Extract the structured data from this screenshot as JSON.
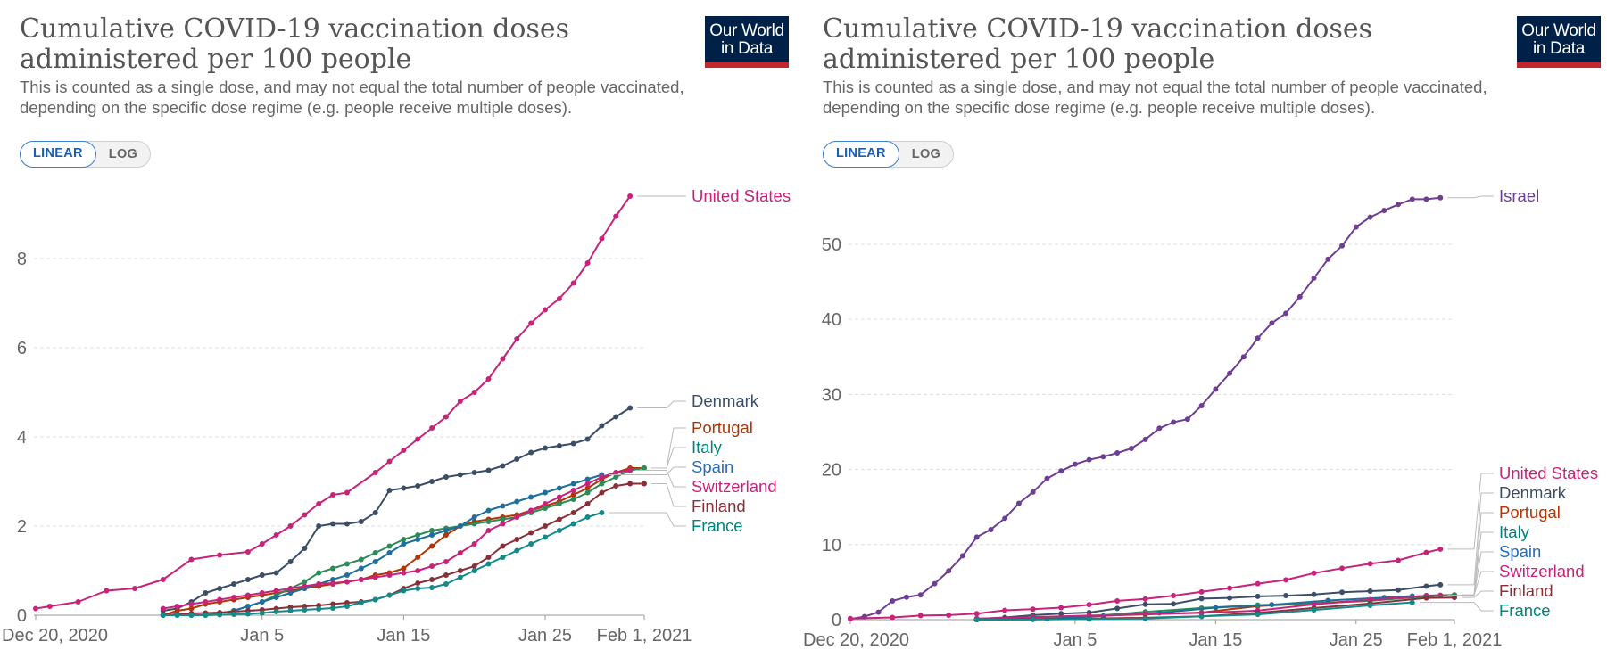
{
  "charts": [
    {
      "title": "Cumulative COVID-19 vaccination doses administered per 100 people",
      "subtitle": "This is counted as a single dose, and may not equal the total number of people vaccinated, depending on the specific dose regime (e.g. people receive multiple doses).",
      "logo": {
        "line1": "Our World",
        "line2": "in Data"
      },
      "scale_toggle": {
        "linear_label": "LINEAR",
        "log_label": "LOG",
        "selected": "LINEAR"
      }
    },
    {
      "title": "Cumulative COVID-19 vaccination doses administered per 100 people",
      "subtitle": "This is counted as a single dose, and may not equal the total number of people vaccinated, depending on the specific dose regime (e.g. people receive multiple doses).",
      "logo": {
        "line1": "Our World",
        "line2": "in Data"
      },
      "scale_toggle": {
        "linear_label": "LINEAR",
        "log_label": "LOG",
        "selected": "LINEAR"
      }
    }
  ],
  "colors": {
    "United States": "#c8237b",
    "Denmark": "#3c4e66",
    "Portugal": "#b13507",
    "Italy": "#00847e",
    "Spain": "#286bbb",
    "Switzerland": "#c8237b",
    "Finland": "#883039",
    "France": "#00847e",
    "Israel": "#6d3e91",
    "Italy_line": "#2e8b57",
    "Spain_line": "#1d6f9c",
    "Switzerland_line": "#c8237b",
    "France_line": "#138a8a"
  },
  "chart_data": [
    {
      "type": "line",
      "x_ticks": [
        "Dec 20, 2020",
        "Jan 5",
        "Jan 15",
        "Jan 25",
        "Feb 1, 2021"
      ],
      "x_tick_days": [
        0,
        16,
        26,
        36,
        43
      ],
      "xlim": [
        0,
        43
      ],
      "y_ticks": [
        0,
        2,
        4,
        6,
        8
      ],
      "ylim": [
        0,
        9.5
      ],
      "grid": "horizontal dashed",
      "labels": [
        "United States",
        "Denmark",
        "Portugal",
        "Italy",
        "Spain",
        "Switzerland",
        "Finland",
        "France"
      ],
      "series": [
        {
          "name": "United States",
          "x": [
            0,
            1,
            3,
            5,
            7,
            9,
            11,
            13,
            15,
            16,
            17,
            18,
            19,
            20,
            21,
            22,
            24,
            25,
            26,
            27,
            28,
            29,
            30,
            31,
            32,
            33,
            34,
            35,
            36,
            37,
            38,
            39,
            40,
            41,
            42
          ],
          "y": [
            0.15,
            0.2,
            0.3,
            0.55,
            0.6,
            0.8,
            1.25,
            1.35,
            1.42,
            1.6,
            1.8,
            2.0,
            2.25,
            2.5,
            2.7,
            2.75,
            3.2,
            3.45,
            3.7,
            3.95,
            4.2,
            4.45,
            4.8,
            5.0,
            5.3,
            5.75,
            6.2,
            6.55,
            6.85,
            7.1,
            7.45,
            7.9,
            8.45,
            8.95,
            9.4
          ]
        },
        {
          "name": "Denmark",
          "x": [
            9,
            10,
            11,
            12,
            13,
            14,
            15,
            16,
            17,
            18,
            19,
            20,
            21,
            22,
            23,
            24,
            25,
            26,
            27,
            28,
            29,
            30,
            31,
            32,
            33,
            34,
            35,
            36,
            37,
            38,
            39,
            40,
            41,
            42
          ],
          "y": [
            0.1,
            0.15,
            0.3,
            0.5,
            0.6,
            0.7,
            0.8,
            0.9,
            0.95,
            1.2,
            1.5,
            2.0,
            2.05,
            2.05,
            2.1,
            2.3,
            2.8,
            2.85,
            2.9,
            3.0,
            3.1,
            3.15,
            3.2,
            3.25,
            3.35,
            3.5,
            3.65,
            3.75,
            3.8,
            3.85,
            3.95,
            4.25,
            4.45,
            4.65
          ]
        },
        {
          "name": "Portugal",
          "x": [
            9,
            10,
            11,
            12,
            13,
            14,
            15,
            16,
            17,
            18,
            19,
            20,
            21,
            22,
            23,
            24,
            25,
            26,
            27,
            28,
            29,
            30,
            31,
            32,
            33,
            34,
            35,
            36,
            37,
            38,
            39,
            40,
            41,
            42,
            43
          ],
          "y": [
            0.0,
            0.1,
            0.15,
            0.25,
            0.3,
            0.35,
            0.4,
            0.45,
            0.5,
            0.55,
            0.6,
            0.65,
            0.7,
            0.75,
            0.8,
            0.9,
            0.95,
            1.05,
            1.3,
            1.55,
            1.8,
            2.0,
            2.1,
            2.15,
            2.2,
            2.25,
            2.35,
            2.45,
            2.55,
            2.7,
            2.85,
            3.05,
            3.2,
            3.3,
            3.3
          ]
        },
        {
          "name": "Italy",
          "x": [
            9,
            10,
            11,
            12,
            13,
            14,
            15,
            16,
            17,
            18,
            19,
            20,
            21,
            22,
            23,
            24,
            25,
            26,
            27,
            28,
            29,
            30,
            31,
            32,
            33,
            34,
            35,
            36,
            37,
            38,
            39,
            40,
            41,
            42,
            43
          ],
          "y": [
            0.0,
            0.0,
            0.0,
            0.0,
            0.05,
            0.1,
            0.2,
            0.3,
            0.45,
            0.6,
            0.75,
            0.95,
            1.05,
            1.15,
            1.25,
            1.4,
            1.55,
            1.7,
            1.8,
            1.9,
            1.95,
            2.0,
            2.05,
            2.1,
            2.15,
            2.2,
            2.3,
            2.4,
            2.5,
            2.6,
            2.75,
            2.95,
            3.1,
            3.25,
            3.3
          ]
        },
        {
          "name": "Spain",
          "x": [
            14,
            15,
            16,
            17,
            18,
            19,
            20,
            21,
            22,
            23,
            24,
            25,
            26,
            27,
            28,
            29,
            30,
            31,
            32,
            33,
            34,
            35,
            36,
            37,
            38,
            39,
            40
          ],
          "y": [
            0.1,
            0.2,
            0.3,
            0.4,
            0.5,
            0.6,
            0.7,
            0.8,
            0.9,
            1.05,
            1.2,
            1.4,
            1.6,
            1.7,
            1.8,
            1.9,
            2.0,
            2.2,
            2.35,
            2.45,
            2.55,
            2.65,
            2.75,
            2.85,
            2.95,
            3.05,
            3.15
          ]
        },
        {
          "name": "Switzerland",
          "x": [
            9,
            10,
            11,
            12,
            13,
            14,
            15,
            16,
            17,
            18,
            19,
            20,
            21,
            22,
            23,
            24,
            25,
            26,
            27,
            28,
            29,
            30,
            31,
            32,
            33,
            34,
            35,
            36,
            37,
            38,
            39,
            40,
            41,
            42
          ],
          "y": [
            0.15,
            0.2,
            0.25,
            0.3,
            0.35,
            0.4,
            0.45,
            0.5,
            0.55,
            0.6,
            0.65,
            0.7,
            0.72,
            0.75,
            0.8,
            0.85,
            0.9,
            0.95,
            1.0,
            1.1,
            1.2,
            1.4,
            1.6,
            1.9,
            2.05,
            2.2,
            2.35,
            2.5,
            2.65,
            2.8,
            2.95,
            3.1,
            3.2,
            3.25
          ]
        },
        {
          "name": "Finland",
          "x": [
            9,
            10,
            11,
            12,
            13,
            14,
            15,
            16,
            17,
            18,
            19,
            20,
            21,
            22,
            23,
            24,
            25,
            26,
            27,
            28,
            29,
            30,
            31,
            32,
            33,
            34,
            35,
            36,
            37,
            38,
            39,
            40,
            41,
            42,
            43
          ],
          "y": [
            0.0,
            0.02,
            0.04,
            0.05,
            0.06,
            0.08,
            0.1,
            0.12,
            0.15,
            0.18,
            0.2,
            0.22,
            0.25,
            0.28,
            0.3,
            0.35,
            0.45,
            0.6,
            0.72,
            0.8,
            0.9,
            1.0,
            1.1,
            1.3,
            1.55,
            1.7,
            1.85,
            2.0,
            2.15,
            2.3,
            2.5,
            2.75,
            2.9,
            2.95,
            2.95
          ]
        },
        {
          "name": "France",
          "x": [
            9,
            10,
            11,
            12,
            13,
            14,
            15,
            16,
            17,
            18,
            19,
            20,
            21,
            22,
            23,
            24,
            25,
            26,
            27,
            28,
            29,
            30,
            31,
            32,
            33,
            34,
            35,
            36,
            37,
            38,
            39,
            40
          ],
          "y": [
            0.0,
            0.0,
            0.0,
            0.0,
            0.01,
            0.02,
            0.03,
            0.05,
            0.08,
            0.1,
            0.12,
            0.14,
            0.16,
            0.2,
            0.28,
            0.35,
            0.45,
            0.55,
            0.6,
            0.62,
            0.7,
            0.85,
            1.0,
            1.15,
            1.3,
            1.45,
            1.6,
            1.75,
            1.9,
            2.05,
            2.2,
            2.3
          ]
        }
      ]
    },
    {
      "type": "line",
      "x_ticks": [
        "Dec 20, 2020",
        "Jan 5",
        "Jan 15",
        "Jan 25",
        "Feb 1, 2021"
      ],
      "x_tick_days": [
        0,
        16,
        26,
        36,
        43
      ],
      "xlim": [
        0,
        43
      ],
      "y_ticks": [
        0,
        10,
        20,
        30,
        40,
        50
      ],
      "ylim": [
        0,
        57
      ],
      "grid": "horizontal dashed",
      "labels": [
        "Israel",
        "United States",
        "Denmark",
        "Portugal",
        "Italy",
        "Spain",
        "Switzerland",
        "Finland",
        "France"
      ],
      "series": [
        {
          "name": "Israel",
          "x": [
            0,
            1,
            2,
            3,
            4,
            5,
            6,
            7,
            8,
            9,
            10,
            11,
            12,
            13,
            14,
            15,
            16,
            17,
            18,
            19,
            20,
            21,
            22,
            23,
            24,
            25,
            26,
            27,
            28,
            29,
            30,
            31,
            32,
            33,
            34,
            35,
            36,
            37,
            38,
            39,
            40,
            41,
            42
          ],
          "y": [
            0.1,
            0.4,
            1.0,
            2.5,
            3.0,
            3.3,
            4.8,
            6.5,
            8.5,
            11.0,
            12.0,
            13.5,
            15.5,
            17.0,
            18.8,
            19.8,
            20.7,
            21.3,
            21.7,
            22.2,
            22.8,
            24.0,
            25.5,
            26.3,
            26.7,
            28.5,
            30.7,
            32.8,
            35.0,
            37.5,
            39.5,
            40.8,
            43.0,
            45.5,
            48.0,
            49.8,
            52.3,
            53.6,
            54.5,
            55.3,
            56.0,
            56.0,
            56.2
          ]
        },
        {
          "name": "United States",
          "x": [
            0,
            3,
            5,
            7,
            9,
            11,
            13,
            15,
            17,
            19,
            21,
            23,
            25,
            27,
            29,
            31,
            33,
            35,
            37,
            39,
            41,
            42
          ],
          "y": [
            0.15,
            0.3,
            0.55,
            0.6,
            0.8,
            1.25,
            1.4,
            1.6,
            2.0,
            2.5,
            2.75,
            3.2,
            3.7,
            4.2,
            4.8,
            5.3,
            6.2,
            6.85,
            7.45,
            7.9,
            8.95,
            9.4
          ]
        },
        {
          "name": "Denmark",
          "x": [
            9,
            11,
            13,
            15,
            17,
            19,
            21,
            23,
            25,
            27,
            29,
            31,
            33,
            35,
            37,
            39,
            41,
            42
          ],
          "y": [
            0.1,
            0.3,
            0.6,
            0.8,
            0.95,
            1.5,
            2.05,
            2.1,
            2.8,
            2.9,
            3.1,
            3.2,
            3.35,
            3.65,
            3.8,
            3.95,
            4.45,
            4.65
          ]
        },
        {
          "name": "Portugal",
          "x": [
            9,
            13,
            17,
            21,
            25,
            29,
            33,
            37,
            41,
            43
          ],
          "y": [
            0.0,
            0.3,
            0.5,
            0.7,
            0.95,
            1.8,
            2.2,
            2.55,
            3.2,
            3.3
          ]
        },
        {
          "name": "Italy",
          "x": [
            9,
            13,
            17,
            21,
            25,
            29,
            33,
            37,
            41,
            43
          ],
          "y": [
            0.0,
            0.05,
            0.45,
            1.05,
            1.55,
            1.95,
            2.15,
            2.5,
            3.1,
            3.3
          ]
        },
        {
          "name": "Spain",
          "x": [
            14,
            18,
            22,
            26,
            30,
            34,
            38,
            40
          ],
          "y": [
            0.1,
            0.5,
            0.9,
            1.6,
            2.0,
            2.55,
            2.95,
            3.15
          ]
        },
        {
          "name": "Switzerland",
          "x": [
            9,
            13,
            17,
            21,
            25,
            29,
            33,
            37,
            41,
            42
          ],
          "y": [
            0.15,
            0.35,
            0.55,
            0.72,
            0.9,
            1.2,
            2.05,
            2.65,
            3.2,
            3.25
          ]
        },
        {
          "name": "Finland",
          "x": [
            9,
            13,
            17,
            21,
            25,
            29,
            33,
            37,
            41,
            43
          ],
          "y": [
            0.0,
            0.06,
            0.15,
            0.25,
            0.45,
            0.9,
            1.55,
            2.15,
            2.9,
            2.95
          ]
        },
        {
          "name": "France",
          "x": [
            9,
            13,
            17,
            21,
            25,
            29,
            33,
            37,
            40
          ],
          "y": [
            0.0,
            0.01,
            0.08,
            0.16,
            0.45,
            0.7,
            1.3,
            1.9,
            2.3
          ]
        }
      ]
    }
  ]
}
